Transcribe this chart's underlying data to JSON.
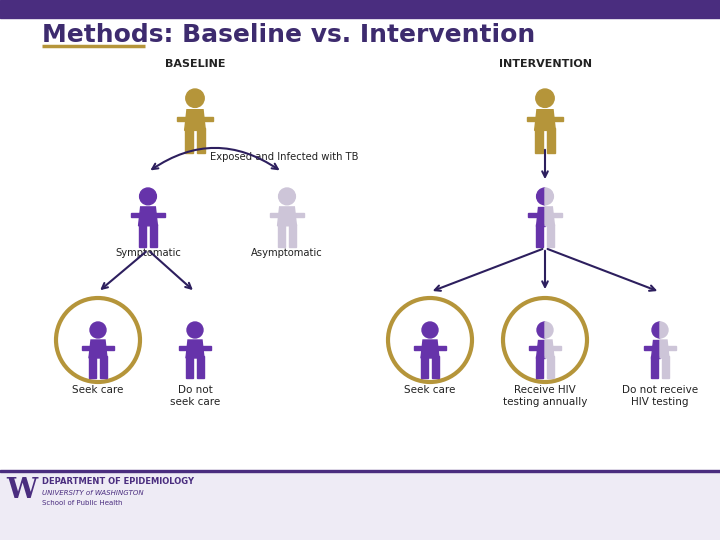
{
  "title": "Methods: Baseline vs. Intervention",
  "title_color": "#3d2b6e",
  "title_fontsize": 18,
  "bg_color": "#ffffff",
  "top_bar_color": "#4a2d7f",
  "footer_bg_color": "#eeebf5",
  "gold_color": "#b5953a",
  "purple_dark": "#6633aa",
  "purple_light": "#c8b8e8",
  "gray_light": "#cdc5d8",
  "arrow_color": "#2d1f5e",
  "text_color": "#222222",
  "baseline_label": "BASELINE",
  "intervention_label": "INTERVENTION",
  "exposed_label": "Exposed and Infected with TB",
  "symptomatic_label": "Symptomatic",
  "asymptomatic_label": "Asymptomatic",
  "seek_care_label": "Seek care",
  "do_not_seek_label": "Do not\nseek care",
  "seek_care2_label": "Seek care",
  "hiv_test_label": "Receive HIV\ntesting annually",
  "no_hiv_label": "Do not receive\nHIV testing",
  "footer_text1": "DEPARTMENT OF EPIDEMIOLOGY",
  "footer_text2": "UNIVERSITY of WASHINGTON",
  "footer_text3": "School of Public Health"
}
